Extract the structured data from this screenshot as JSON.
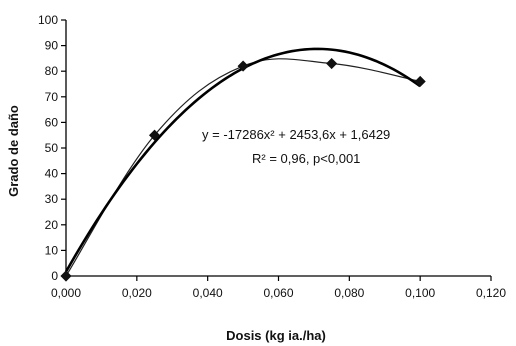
{
  "chart_data": {
    "type": "scatter",
    "xlabel": "Dosis (kg ia./ha)",
    "ylabel": "Grado de daño",
    "xlim": [
      0,
      0.12
    ],
    "ylim": [
      0,
      100
    ],
    "x_ticks": [
      "0,000",
      "0,020",
      "0,040",
      "0,060",
      "0,080",
      "0,100",
      "0,120"
    ],
    "y_ticks": [
      "0",
      "10",
      "20",
      "30",
      "40",
      "50",
      "60",
      "70",
      "80",
      "90",
      "100"
    ],
    "grid": false,
    "series": [
      {
        "marker": "diamond",
        "x": [
          0,
          0.025,
          0.05,
          0.075,
          0.1
        ],
        "y": [
          0,
          55,
          82,
          83,
          76
        ]
      }
    ],
    "fit": {
      "equation": "y = -17286x² + 2453,6x + 1,6429",
      "r2_label": "R² = 0,96, p<0,001",
      "a": -17286,
      "b": 2453.6,
      "c": 1.6429
    }
  }
}
